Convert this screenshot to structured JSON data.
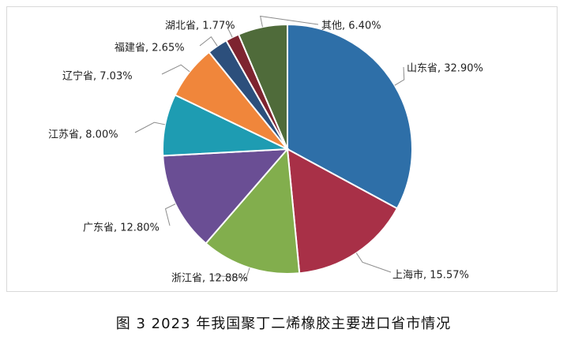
{
  "chart_data": {
    "type": "pie",
    "start_angle_deg": 0,
    "direction": "clockwise",
    "slices": [
      {
        "name": "山东省",
        "value": 32.9,
        "label": "山东省, 32.90%",
        "color": "#2E6FA8"
      },
      {
        "name": "上海市",
        "value": 15.57,
        "label": "上海市, 15.57%",
        "color": "#A83047"
      },
      {
        "name": "浙江省",
        "value": 12.88,
        "label": "浙江省, 12.88%",
        "color": "#82AE4D"
      },
      {
        "name": "广东省",
        "value": 12.8,
        "label": "广东省, 12.80%",
        "color": "#6A4E94"
      },
      {
        "name": "江苏省",
        "value": 8.0,
        "label": "江苏省, 8.00%",
        "color": "#1E9CB2"
      },
      {
        "name": "辽宁省",
        "value": 7.03,
        "label": "辽宁省, 7.03%",
        "color": "#F0863B"
      },
      {
        "name": "福建省",
        "value": 2.65,
        "label": "福建省, 2.65%",
        "color": "#2C4F7C"
      },
      {
        "name": "湖北省",
        "value": 1.77,
        "label": "湖北省, 1.77%",
        "color": "#7E2430"
      },
      {
        "name": "其他",
        "value": 6.4,
        "label": "其他, 6.40%",
        "color": "#4F6B3A"
      }
    ]
  },
  "caption": "图 3  2023 年我国聚丁二烯橡胶主要进口省市情况"
}
